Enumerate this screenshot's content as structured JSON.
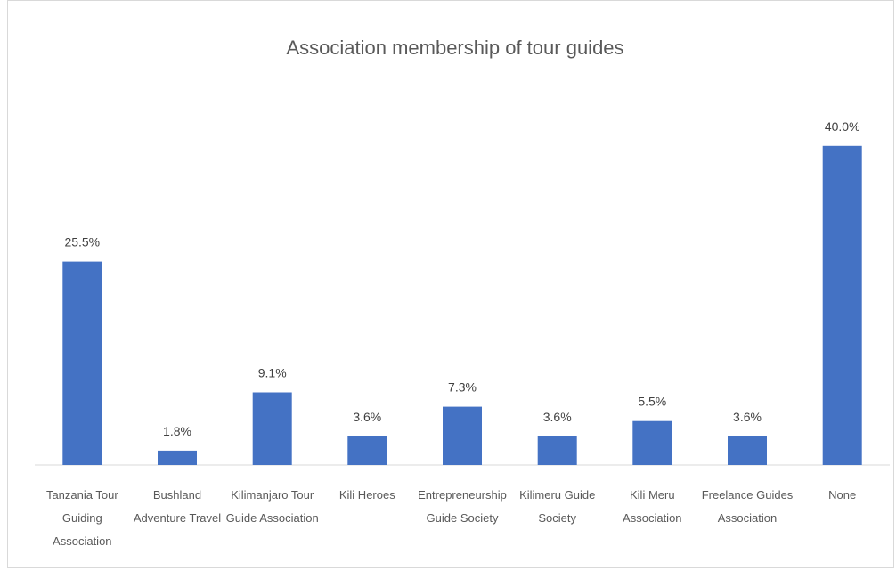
{
  "chart_data": {
    "type": "bar",
    "title": "Association membership of tour guides",
    "xlabel": "",
    "ylabel": "",
    "ylim": [
      0,
      45
    ],
    "grid": false,
    "bar_color": "#4472C4",
    "axis_color": "#d9d9d9",
    "categories": [
      "Tanzania Tour Guiding Association",
      "Bushland Adventure Travel",
      "Kilimanjaro Tour Guide Association",
      "Kili Heroes",
      "Entrepreneurship Guide Society",
      "Kilimeru Guide Society",
      "Kili Meru Association",
      "Freelance Guides Association",
      "None"
    ],
    "category_lines": [
      [
        "Tanzania Tour",
        "Guiding",
        "Association"
      ],
      [
        "Bushland",
        "Adventure Travel"
      ],
      [
        "Kilimanjaro Tour",
        "Guide Association"
      ],
      [
        "Kili Heroes"
      ],
      [
        "Entrepreneurship",
        "Guide Society"
      ],
      [
        "Kilimeru Guide",
        "Society"
      ],
      [
        "Kili Meru",
        "Association"
      ],
      [
        "Freelance Guides",
        "Association"
      ],
      [
        "None"
      ]
    ],
    "values": [
      25.5,
      1.8,
      9.1,
      3.6,
      7.3,
      3.6,
      5.5,
      3.6,
      40.0
    ],
    "data_labels": [
      "25.5%",
      "1.8%",
      "9.1%",
      "3.6%",
      "7.3%",
      "3.6%",
      "5.5%",
      "3.6%",
      "40.0%"
    ]
  }
}
